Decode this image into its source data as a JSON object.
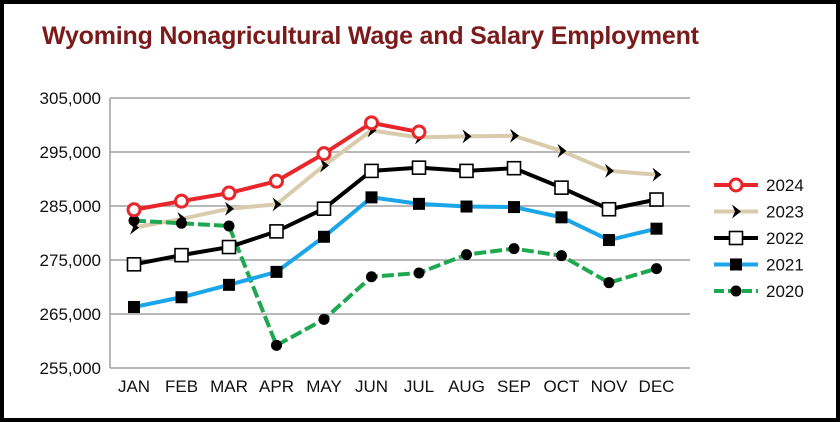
{
  "chart_data": {
    "type": "line",
    "title": "Wyoming Nonagricultural Wage and Salary Employment",
    "xlabel": "",
    "ylabel": "",
    "categories": [
      "JAN",
      "FEB",
      "MAR",
      "APR",
      "MAY",
      "JUN",
      "JUL",
      "AUG",
      "SEP",
      "OCT",
      "NOV",
      "DEC"
    ],
    "ylim": [
      255000,
      305000
    ],
    "yticks": [
      255000,
      265000,
      275000,
      285000,
      295000,
      305000
    ],
    "ytick_labels": [
      "255,000",
      "265,000",
      "275,000",
      "285,000",
      "295,000",
      "305,000"
    ],
    "grid": "horizontal",
    "legend_position": "right",
    "series": [
      {
        "name": "2024",
        "color": "#e8262b",
        "marker": "open-circle",
        "values": [
          284300,
          285900,
          287400,
          289600,
          294700,
          300400,
          298700,
          null,
          null,
          null,
          null,
          null
        ]
      },
      {
        "name": "2023",
        "color": "#d9ccad",
        "marker": "chevron",
        "values": [
          281000,
          282600,
          284500,
          285300,
          292500,
          299000,
          297700,
          297900,
          298000,
          295200,
          291500,
          290800
        ]
      },
      {
        "name": "2022",
        "color": "#000000",
        "marker": "open-square",
        "values": [
          274200,
          275900,
          277400,
          280300,
          284500,
          291500,
          292100,
          291500,
          292000,
          288400,
          284400,
          286200
        ]
      },
      {
        "name": "2021",
        "color": "#1aa6e8",
        "marker": "filled-square",
        "values": [
          266300,
          268100,
          270400,
          272800,
          279300,
          286600,
          285400,
          284900,
          284800,
          282900,
          278700,
          280800
        ]
      },
      {
        "name": "2020",
        "color": "#1ea84f",
        "marker": "filled-circle",
        "dashed": true,
        "values": [
          282300,
          281800,
          281300,
          259200,
          264000,
          271900,
          272600,
          276000,
          277100,
          275800,
          270800,
          273400
        ]
      }
    ]
  }
}
